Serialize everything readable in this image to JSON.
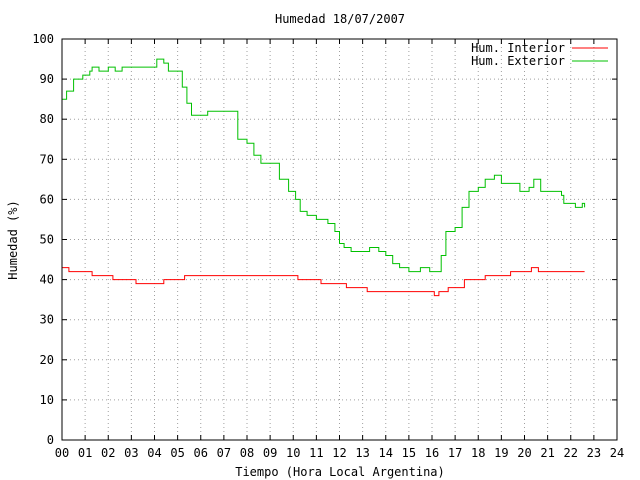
{
  "chart_data": {
    "type": "line",
    "title": "Humedad 18/07/2007",
    "xlabel": "Tiempo (Hora Local Argentina)",
    "ylabel": "Humedad (%)",
    "xlim": [
      0,
      24
    ],
    "ylim": [
      0,
      100
    ],
    "x_ticks": [
      "00",
      "01",
      "02",
      "03",
      "04",
      "05",
      "06",
      "07",
      "08",
      "09",
      "10",
      "11",
      "12",
      "13",
      "14",
      "15",
      "16",
      "17",
      "18",
      "19",
      "20",
      "21",
      "22",
      "23",
      "24"
    ],
    "y_ticks": [
      "0",
      "10",
      "20",
      "30",
      "40",
      "50",
      "60",
      "70",
      "80",
      "90",
      "100"
    ],
    "grid": true,
    "legend_position": "top-right",
    "series": [
      {
        "name": "Hum. Interior",
        "color": "#ff0000",
        "points": [
          [
            0,
            43
          ],
          [
            0.3,
            42
          ],
          [
            1.3,
            41
          ],
          [
            2.2,
            40
          ],
          [
            3.2,
            39
          ],
          [
            4.4,
            40
          ],
          [
            5.3,
            41
          ],
          [
            10.2,
            40
          ],
          [
            11.2,
            39
          ],
          [
            12.3,
            38
          ],
          [
            13.2,
            37
          ],
          [
            16.1,
            36
          ],
          [
            16.3,
            37
          ],
          [
            16.7,
            38
          ],
          [
            17.4,
            40
          ],
          [
            18.3,
            41
          ],
          [
            19.4,
            42
          ],
          [
            20.3,
            43
          ],
          [
            20.6,
            42
          ],
          [
            22.6,
            42
          ]
        ]
      },
      {
        "name": "Hum. Exterior",
        "color": "#00c000",
        "points": [
          [
            0,
            85
          ],
          [
            0.2,
            87
          ],
          [
            0.5,
            90
          ],
          [
            0.9,
            91
          ],
          [
            1.2,
            92
          ],
          [
            1.3,
            93
          ],
          [
            1.6,
            92
          ],
          [
            2.0,
            93
          ],
          [
            2.3,
            92
          ],
          [
            2.6,
            93
          ],
          [
            4.0,
            93
          ],
          [
            4.1,
            95
          ],
          [
            4.4,
            94
          ],
          [
            4.6,
            92
          ],
          [
            5.0,
            92
          ],
          [
            5.2,
            88
          ],
          [
            5.4,
            84
          ],
          [
            5.6,
            81
          ],
          [
            6.2,
            81
          ],
          [
            6.3,
            82
          ],
          [
            7.3,
            82
          ],
          [
            7.6,
            75
          ],
          [
            8.0,
            74
          ],
          [
            8.3,
            71
          ],
          [
            8.6,
            69
          ],
          [
            9.2,
            69
          ],
          [
            9.4,
            65
          ],
          [
            9.8,
            62
          ],
          [
            10.1,
            60
          ],
          [
            10.3,
            57
          ],
          [
            10.6,
            56
          ],
          [
            11.0,
            55
          ],
          [
            11.4,
            55
          ],
          [
            11.5,
            54
          ],
          [
            11.8,
            52
          ],
          [
            12.0,
            49
          ],
          [
            12.2,
            48
          ],
          [
            12.5,
            47
          ],
          [
            13.0,
            47
          ],
          [
            13.3,
            48
          ],
          [
            13.7,
            47
          ],
          [
            14.0,
            46
          ],
          [
            14.3,
            44
          ],
          [
            14.6,
            43
          ],
          [
            15.0,
            42
          ],
          [
            15.5,
            43
          ],
          [
            15.9,
            42
          ],
          [
            16.2,
            42
          ],
          [
            16.4,
            46
          ],
          [
            16.6,
            52
          ],
          [
            17.0,
            53
          ],
          [
            17.3,
            58
          ],
          [
            17.6,
            62
          ],
          [
            18.0,
            63
          ],
          [
            18.3,
            65
          ],
          [
            18.7,
            66
          ],
          [
            19.0,
            64
          ],
          [
            19.4,
            64
          ],
          [
            19.8,
            62
          ],
          [
            20.2,
            63
          ],
          [
            20.4,
            65
          ],
          [
            20.7,
            62
          ],
          [
            21.3,
            62
          ],
          [
            21.6,
            61
          ],
          [
            21.7,
            59
          ],
          [
            22.2,
            58
          ],
          [
            22.5,
            59
          ],
          [
            22.6,
            58
          ]
        ]
      }
    ]
  }
}
